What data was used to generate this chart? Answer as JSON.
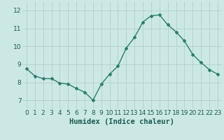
{
  "x": [
    0,
    1,
    2,
    3,
    4,
    5,
    6,
    7,
    8,
    9,
    10,
    11,
    12,
    13,
    14,
    15,
    16,
    17,
    18,
    19,
    20,
    21,
    22,
    23
  ],
  "y": [
    8.75,
    8.35,
    8.2,
    8.2,
    7.95,
    7.9,
    7.65,
    7.45,
    7.0,
    7.9,
    8.45,
    8.9,
    9.9,
    10.5,
    11.35,
    11.7,
    11.75,
    11.2,
    10.8,
    10.3,
    9.55,
    9.1,
    8.7,
    8.45
  ],
  "xlabel": "Humidex (Indice chaleur)",
  "ylim": [
    6.5,
    12.5
  ],
  "xlim": [
    -0.5,
    23.5
  ],
  "yticks": [
    7,
    8,
    9,
    10,
    11,
    12
  ],
  "xticks": [
    0,
    1,
    2,
    3,
    4,
    5,
    6,
    7,
    8,
    9,
    10,
    11,
    12,
    13,
    14,
    15,
    16,
    17,
    18,
    19,
    20,
    21,
    22,
    23
  ],
  "line_color": "#2d7d6e",
  "marker": "D",
  "marker_size": 2.0,
  "bg_color": "#cce8e4",
  "grid_color": "#aaccc8",
  "tick_label_color": "#1a5a52",
  "xlabel_color": "#1a5a52",
  "xlabel_fontsize": 7.5,
  "tick_fontsize": 6.5,
  "line_width": 1.0
}
